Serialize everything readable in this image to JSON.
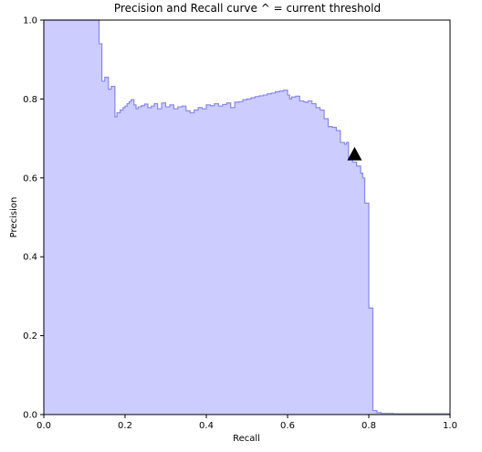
{
  "chart_data": {
    "type": "area",
    "title": "Precision and Recall curve ^ = current threshold",
    "xlabel": "Recall",
    "ylabel": "Precision",
    "xlim": [
      0,
      1
    ],
    "ylim": [
      0,
      1
    ],
    "xticks": [
      "0.0",
      "0.2",
      "0.4",
      "0.6",
      "0.8",
      "1.0"
    ],
    "yticks": [
      "0.0",
      "0.2",
      "0.4",
      "0.6",
      "0.8",
      "1.0"
    ],
    "grid": false,
    "legend": "none",
    "series": [
      {
        "step": "post",
        "fill_color": "#ccccff",
        "line_color": "#8888ee",
        "recall": [
          0.0,
          0.136,
          0.143,
          0.15,
          0.159,
          0.166,
          0.175,
          0.18,
          0.188,
          0.195,
          0.2,
          0.205,
          0.21,
          0.215,
          0.222,
          0.227,
          0.232,
          0.24,
          0.248,
          0.256,
          0.265,
          0.272,
          0.28,
          0.29,
          0.3,
          0.31,
          0.32,
          0.33,
          0.34,
          0.35,
          0.36,
          0.37,
          0.38,
          0.39,
          0.4,
          0.41,
          0.42,
          0.43,
          0.44,
          0.45,
          0.46,
          0.47,
          0.48,
          0.49,
          0.5,
          0.51,
          0.52,
          0.53,
          0.54,
          0.55,
          0.56,
          0.57,
          0.58,
          0.59,
          0.6,
          0.605,
          0.61,
          0.62,
          0.63,
          0.64,
          0.645,
          0.65,
          0.66,
          0.67,
          0.68,
          0.69,
          0.7,
          0.71,
          0.72,
          0.73,
          0.74,
          0.745,
          0.75,
          0.76,
          0.77,
          0.78,
          0.785,
          0.79,
          0.8,
          0.805,
          0.81,
          0.82,
          0.83,
          0.86,
          0.9,
          1.0
        ],
        "precision": [
          1.0,
          0.94,
          0.845,
          0.855,
          0.825,
          0.832,
          0.755,
          0.765,
          0.772,
          0.778,
          0.782,
          0.788,
          0.793,
          0.798,
          0.785,
          0.775,
          0.78,
          0.783,
          0.787,
          0.778,
          0.782,
          0.788,
          0.775,
          0.79,
          0.78,
          0.785,
          0.775,
          0.78,
          0.782,
          0.77,
          0.765,
          0.772,
          0.778,
          0.775,
          0.785,
          0.783,
          0.788,
          0.782,
          0.786,
          0.79,
          0.778,
          0.792,
          0.793,
          0.798,
          0.8,
          0.803,
          0.806,
          0.808,
          0.81,
          0.813,
          0.815,
          0.818,
          0.82,
          0.822,
          0.81,
          0.8,
          0.805,
          0.807,
          0.795,
          0.793,
          0.791,
          0.795,
          0.788,
          0.778,
          0.772,
          0.75,
          0.73,
          0.728,
          0.72,
          0.69,
          0.685,
          0.69,
          0.65,
          0.64,
          0.63,
          0.612,
          0.6,
          0.536,
          0.27,
          0.27,
          0.01,
          0.005,
          0.003,
          0.002,
          0.002,
          0.002
        ]
      }
    ],
    "marker": {
      "shape": "triangle",
      "color": "#000000",
      "recall": 0.765,
      "precision": 0.66
    }
  }
}
